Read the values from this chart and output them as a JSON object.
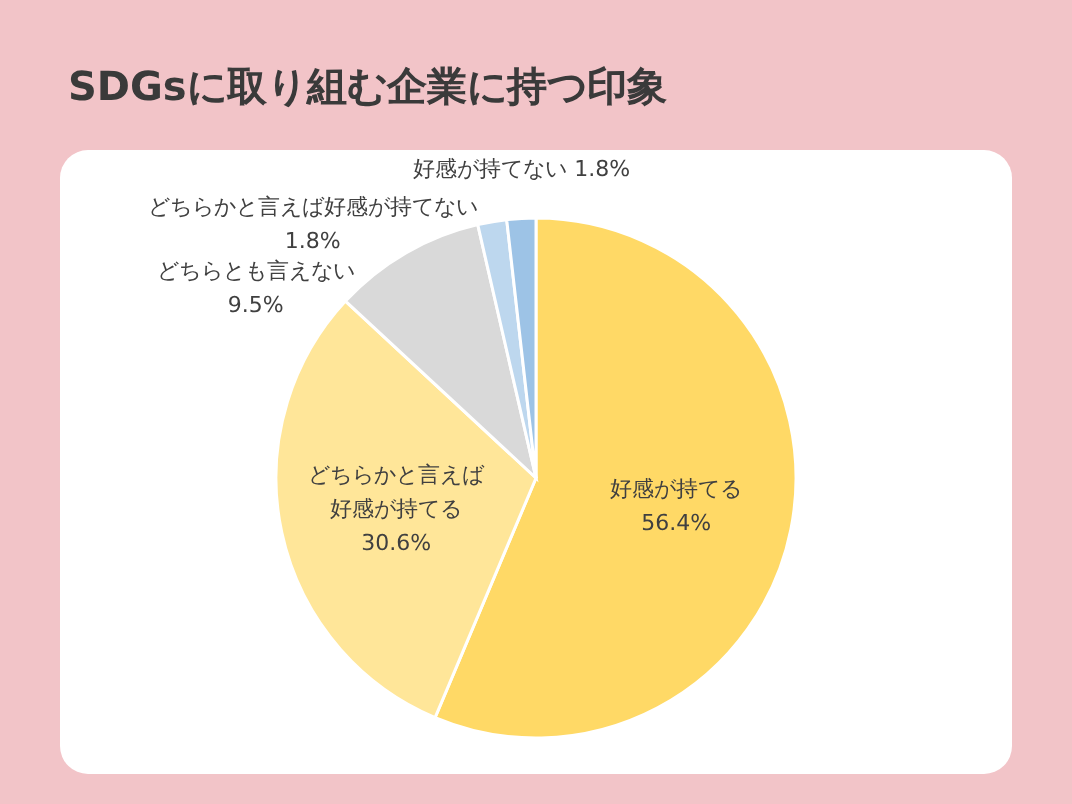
{
  "chart_data": {
    "type": "pie",
    "title": "SDGsに取り組む企業に持つ印象",
    "categories": [
      "好感が持てる",
      "どちらかと言えば好感が持てる",
      "どちらとも言えない",
      "どちらかと言えば好感が持てない",
      "好感が持てない"
    ],
    "values": [
      56.4,
      30.6,
      9.5,
      1.8,
      1.8
    ],
    "colors": [
      "#ffd966",
      "#ffe699",
      "#d9d9d9",
      "#bdd7ee",
      "#9dc3e6"
    ],
    "value_labels": [
      "56.4%",
      "30.6%",
      "9.5%",
      "1.8%",
      "1.8%"
    ]
  }
}
